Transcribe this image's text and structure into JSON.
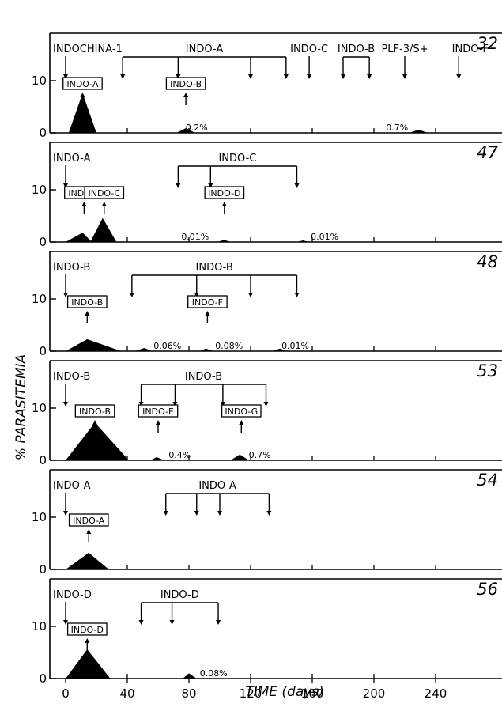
{
  "chart_data": {
    "type": "area",
    "xlabel": "TIME (days)",
    "ylabel": "% PARASITEMIA",
    "xlim": [
      -5,
      275
    ],
    "ylim": [
      0,
      17
    ],
    "x_ticks": [
      "0",
      "40",
      "80",
      "120",
      "160",
      "200",
      "240"
    ],
    "y_ticks": [
      "0",
      "10"
    ],
    "grid": false,
    "panels": [
      {
        "animal": "32",
        "challenges": [
          {
            "label": "INDOCHINA-1",
            "days": [
              0
            ]
          },
          {
            "label": "INDO-A",
            "days": [
              37,
              73,
              120,
              143
            ]
          },
          {
            "label": "INDO-C",
            "days": [
              158
            ]
          },
          {
            "label": "INDO-B",
            "days": [
              180,
              197
            ]
          },
          {
            "label": "PLF-3/S+",
            "days": [
              220
            ]
          },
          {
            "label": "INDO-F",
            "days": [
              255
            ]
          }
        ],
        "peaks": [
          {
            "start": 2,
            "peak": 11,
            "end": 20,
            "value": 7.6
          },
          {
            "start": 72,
            "peak": 78,
            "end": 84,
            "value": 0.9
          },
          {
            "start": 223,
            "peak": 229,
            "end": 235,
            "value": 0.6
          }
        ],
        "isolates": [
          {
            "label": "INDO-A",
            "day": 11
          },
          {
            "label": "INDO-B",
            "day": 78
          }
        ],
        "percent_labels": [
          {
            "text": "0.2%",
            "day": 85
          },
          {
            "text": "0.7%",
            "day": 215
          }
        ]
      },
      {
        "animal": "47",
        "challenges": [
          {
            "label": "INDO-A",
            "days": [
              0
            ]
          },
          {
            "label": "INDO-C",
            "days": [
              73,
              94,
              150
            ]
          }
        ],
        "peaks": [
          {
            "start": 0,
            "peak": 11,
            "end": 17,
            "value": 1.8
          },
          {
            "start": 16,
            "peak": 24,
            "end": 33,
            "value": 4.6
          },
          {
            "start": 98,
            "peak": 103,
            "end": 107,
            "value": 0.4
          },
          {
            "start": 150,
            "peak": 154,
            "end": 158,
            "value": 0.3
          }
        ],
        "isolates": [
          {
            "label": "INDO-A",
            "day": 12
          },
          {
            "label": "INDO-C",
            "day": 25
          },
          {
            "label": "INDO-D",
            "day": 103
          }
        ],
        "percent_labels": [
          {
            "text": "0.01%",
            "day": 84
          },
          {
            "text": "0.01%",
            "day": 168
          }
        ]
      },
      {
        "animal": "48",
        "challenges": [
          {
            "label": "INDO-B",
            "days": [
              0
            ]
          },
          {
            "label": "INDO-B",
            "days": [
              43,
              85,
              120,
              150
            ]
          }
        ],
        "peaks": [
          {
            "start": 0,
            "peak": 14,
            "end": 36,
            "value": 2.3
          },
          {
            "start": 45,
            "peak": 51,
            "end": 56,
            "value": 0.6
          },
          {
            "start": 87,
            "peak": 91,
            "end": 96,
            "value": 0.5
          },
          {
            "start": 134,
            "peak": 139,
            "end": 144,
            "value": 0.5
          }
        ],
        "isolates": [
          {
            "label": "INDO-B",
            "day": 14
          },
          {
            "label": "INDO-F",
            "day": 92
          }
        ],
        "percent_labels": [
          {
            "text": "0.06%",
            "day": 66
          },
          {
            "text": "0.08%",
            "day": 106
          },
          {
            "text": "0.01%",
            "day": 149
          }
        ]
      },
      {
        "animal": "53",
        "challenges": [
          {
            "label": "INDO-B",
            "days": [
              0
            ]
          },
          {
            "label": "INDO-B",
            "days": [
              49,
              71,
              102,
              130
            ]
          }
        ],
        "peaks": [
          {
            "start": 0,
            "peak": 19,
            "end": 41,
            "value": 7.2
          },
          {
            "start": 55,
            "peak": 59,
            "end": 64,
            "value": 0.6
          },
          {
            "start": 107,
            "peak": 113,
            "end": 119,
            "value": 1.1
          }
        ],
        "isolates": [
          {
            "label": "INDO-B",
            "day": 19
          },
          {
            "label": "INDO-E",
            "day": 60
          },
          {
            "label": "INDO-G",
            "day": 114
          }
        ],
        "percent_labels": [
          {
            "text": "0.4%",
            "day": 74
          },
          {
            "text": "0.7%",
            "day": 126
          }
        ]
      },
      {
        "animal": "54",
        "challenges": [
          {
            "label": "INDO-A",
            "days": [
              0
            ]
          },
          {
            "label": "INDO-A",
            "days": [
              65,
              85,
              100,
              132
            ]
          }
        ],
        "peaks": [
          {
            "start": 0,
            "peak": 15,
            "end": 28,
            "value": 3.2
          }
        ],
        "isolates": [
          {
            "label": "INDO-A",
            "day": 15
          }
        ],
        "percent_labels": []
      },
      {
        "animal": "56",
        "challenges": [
          {
            "label": "INDO-D",
            "days": [
              0
            ]
          },
          {
            "label": "INDO-D",
            "days": [
              49,
              69,
              99
            ]
          }
        ],
        "peaks": [
          {
            "start": 0,
            "peak": 14,
            "end": 29,
            "value": 5.6
          },
          {
            "start": 76,
            "peak": 80,
            "end": 85,
            "value": 1.0
          }
        ],
        "isolates": [
          {
            "label": "INDO-D",
            "day": 14
          }
        ],
        "percent_labels": [
          {
            "text": "0.08%",
            "day": 96
          }
        ]
      }
    ]
  }
}
